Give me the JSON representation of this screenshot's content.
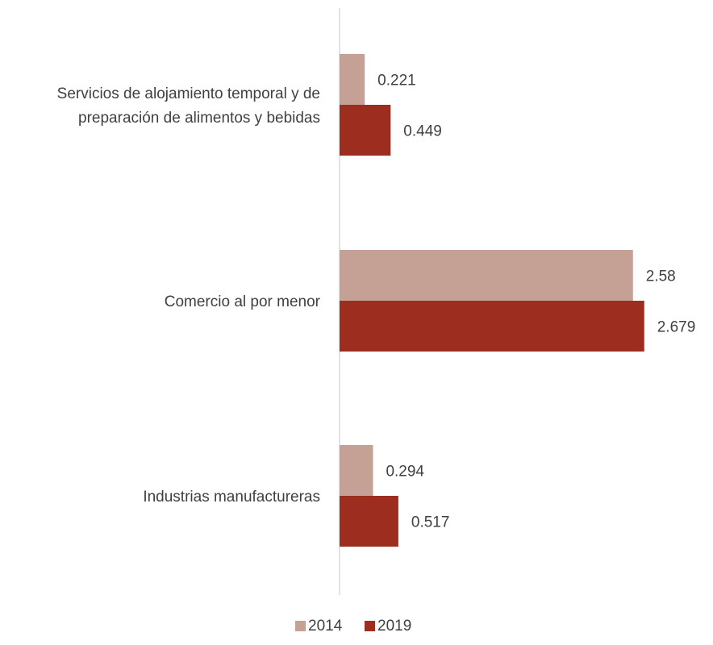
{
  "chart_data": {
    "type": "bar",
    "orientation": "horizontal",
    "categories": [
      [
        "Servicios de alojamiento temporal y de",
        "preparación de alimentos y bebidas"
      ],
      [
        "Comercio al por menor"
      ],
      [
        "Industrias manufactureras"
      ]
    ],
    "series": [
      {
        "name": "2014",
        "color": "#c4a095",
        "values": [
          0.221,
          2.58,
          0.294
        ],
        "labels": [
          "0.221",
          "2.58",
          "0.294"
        ]
      },
      {
        "name": "2019",
        "color": "#9c2d1f",
        "values": [
          0.449,
          2.679,
          0.517
        ],
        "labels": [
          "0.449",
          "2.679",
          "0.517"
        ]
      }
    ],
    "xlim": [
      0,
      3.0
    ],
    "grid": false,
    "legend": "bottom-center",
    "axis_color": "#d9d9d9"
  }
}
